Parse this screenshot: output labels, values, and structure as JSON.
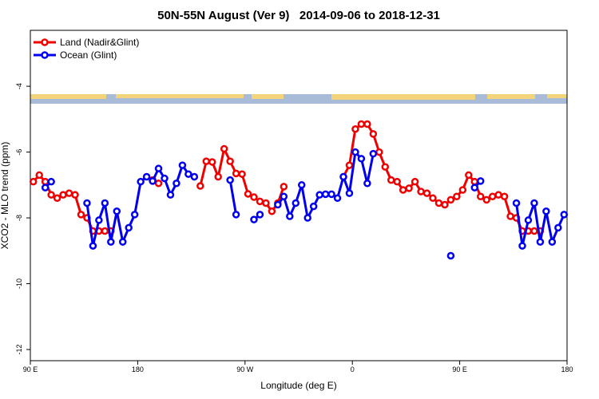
{
  "chart_data": {
    "type": "line",
    "title": "50N-55N August (Ver 9)   2014-09-06 to 2018-12-31",
    "x_label": "Longitude (deg E)",
    "y_label": "XCO2 - MLO trend (ppm)",
    "xlim": [
      90,
      540
    ],
    "ylim": [
      -12.34,
      -2.3
    ],
    "xticks": [
      {
        "value": 90,
        "label": "90 E"
      },
      180,
      {
        "value": 270,
        "label": "90 W"
      },
      {
        "value": 360,
        "label": "0"
      },
      {
        "value": 450,
        "label": "90 E"
      },
      {
        "value": 540,
        "label": "180"
      }
    ],
    "yticks": [
      -12,
      -10,
      -8,
      -6,
      -4
    ],
    "legend": "top-left",
    "grid": false,
    "x": [
      92.5,
      97.5,
      102.5,
      107.5,
      112.5,
      117.5,
      122.5,
      127.5,
      132.5,
      137.5,
      142.5,
      147.5,
      152.5,
      157.5,
      162.5,
      167.5,
      172.5,
      177.5,
      182.5,
      187.5,
      192.5,
      197.5,
      202.5,
      207.5,
      212.5,
      217.5,
      222.5,
      227.5,
      232.5,
      237.5,
      242.5,
      247.5,
      252.5,
      257.5,
      262.5,
      267.5,
      272.5,
      277.5,
      282.5,
      287.5,
      292.5,
      297.5,
      302.5,
      307.5,
      312.5,
      317.5,
      322.5,
      327.5,
      332.5,
      337.5,
      342.5,
      347.5,
      352.5,
      357.5,
      362.5,
      367.5,
      372.5,
      377.5,
      382.5,
      387.5,
      392.5,
      397.5,
      402.5,
      407.5,
      412.5,
      417.5,
      422.5,
      427.5,
      432.5,
      437.5,
      442.5,
      447.5,
      452.5,
      457.5,
      462.5,
      467.5,
      472.5,
      477.5,
      482.5,
      487.5,
      492.5,
      497.5,
      502.5,
      507.5,
      512.5,
      517.5,
      522.5,
      527.5,
      532.5,
      537.5
    ],
    "series": [
      {
        "name": "Land (Nadir&Glint)",
        "color": "#ee0000",
        "values": [
          -6.9,
          -6.7,
          -6.9,
          -7.3,
          -7.4,
          -7.3,
          -7.25,
          -7.3,
          -7.9,
          -8.0,
          -8.4,
          -8.4,
          -8.4,
          -8.4,
          null,
          null,
          null,
          null,
          null,
          null,
          -6.85,
          -6.95,
          null,
          null,
          null,
          null,
          null,
          null,
          -7.03,
          -6.28,
          -6.3,
          -6.75,
          -5.9,
          -6.28,
          -6.65,
          -6.67,
          -7.27,
          -7.37,
          -7.5,
          -7.55,
          -7.8,
          -7.55,
          -7.05,
          null,
          null,
          null,
          null,
          null,
          null,
          null,
          null,
          null,
          -6.75,
          -6.4,
          -5.3,
          -5.15,
          -5.15,
          -5.45,
          -6.0,
          -6.45,
          -6.85,
          -6.9,
          -7.15,
          -7.1,
          -6.9,
          -7.2,
          -7.25,
          -7.4,
          -7.55,
          -7.6,
          -7.45,
          -7.35,
          -7.15,
          -6.7,
          -6.9,
          -7.35,
          -7.45,
          -7.35,
          -7.3,
          -7.35,
          -7.95,
          -8.0,
          -8.4,
          -8.4,
          -8.4,
          -8.4,
          null,
          null,
          null,
          null
        ]
      },
      {
        "name": "Ocean (Glint)",
        "color": "#0000ee",
        "values": [
          null,
          null,
          -7.08,
          -6.9,
          null,
          null,
          null,
          null,
          null,
          -7.55,
          -8.85,
          -8.07,
          -7.55,
          -8.73,
          -7.8,
          -8.73,
          -8.3,
          -7.9,
          -6.9,
          -6.75,
          -6.88,
          -6.5,
          -6.8,
          -7.3,
          -6.95,
          -6.4,
          -6.67,
          -6.75,
          null,
          null,
          null,
          null,
          null,
          -6.85,
          -7.9,
          null,
          null,
          -8.05,
          -7.9,
          null,
          null,
          -7.6,
          -7.35,
          -7.95,
          -7.55,
          -7.0,
          -8.0,
          -7.65,
          -7.3,
          -7.28,
          -7.28,
          -7.4,
          -6.75,
          -7.25,
          -6.0,
          -6.2,
          -6.95,
          -6.05,
          null,
          null,
          null,
          null,
          null,
          null,
          null,
          null,
          null,
          null,
          null,
          null,
          -9.15,
          null,
          null,
          null,
          -7.08,
          -6.88,
          null,
          null,
          null,
          null,
          null,
          -7.55,
          -8.85,
          -8.07,
          -7.55,
          -8.73,
          -7.8,
          -8.73,
          -8.3,
          -7.9
        ]
      }
    ]
  }
}
